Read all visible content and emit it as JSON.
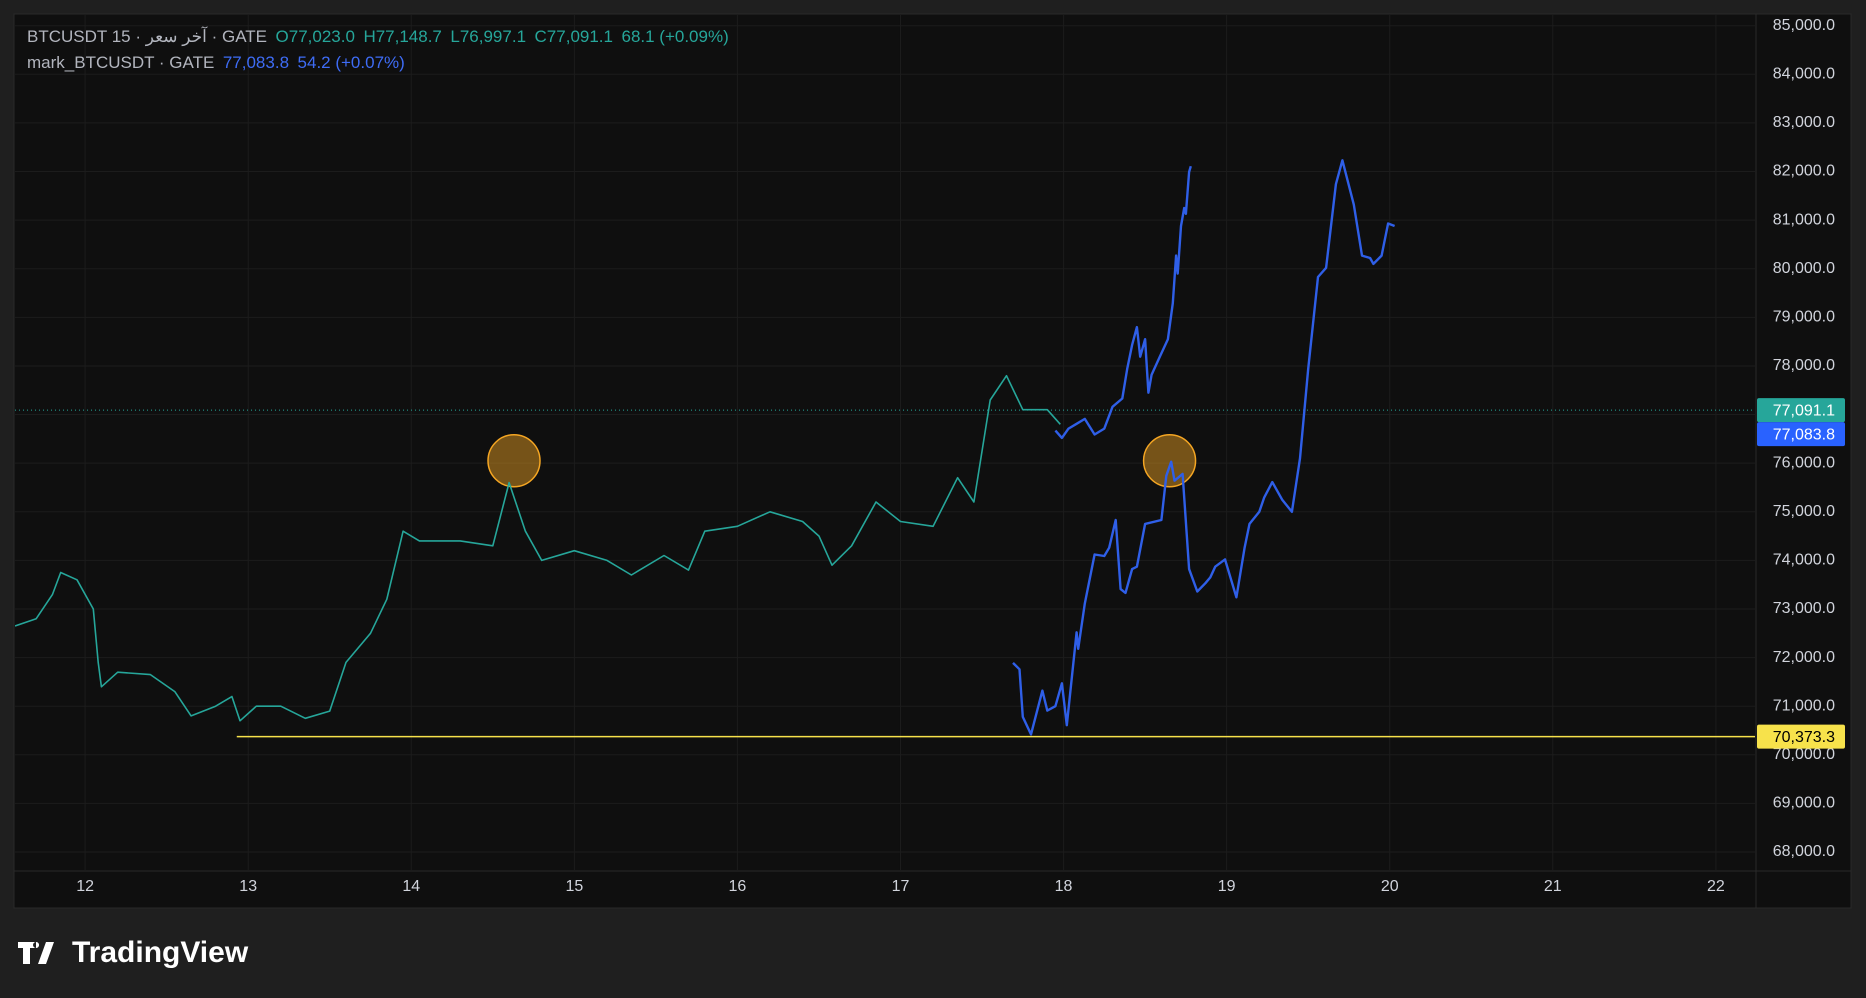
{
  "chart_data": {
    "type": "line",
    "series": [
      {
        "name": "BTCUSDT 15 · آخر سعر · GATE",
        "color": "#26a69a",
        "legend_values": [
          "O77,023.0",
          "H77,148.7",
          "L76,997.1",
          "C77,091.1",
          "68.1 (+0.09%)"
        ],
        "x": [
          11.57,
          11.7,
          11.8,
          11.85,
          11.95,
          12.05,
          12.08,
          12.1,
          12.2,
          12.4,
          12.55,
          12.65,
          12.8,
          12.9,
          12.95,
          13.05,
          13.2,
          13.35,
          13.5,
          13.6,
          13.75,
          13.85,
          13.95,
          14.05,
          14.3,
          14.5,
          14.6,
          14.7,
          14.8,
          15.0,
          15.2,
          15.35,
          15.55,
          15.7,
          15.8,
          16.0,
          16.2,
          16.4,
          16.5,
          16.58,
          16.7,
          16.85,
          17.0,
          17.2,
          17.35,
          17.45,
          17.55,
          17.65,
          17.75,
          17.9,
          17.98
        ],
        "values": [
          72650,
          72800,
          73300,
          73750,
          73600,
          73000,
          71900,
          71400,
          71700,
          71650,
          71300,
          70800,
          71000,
          71200,
          70700,
          71000,
          71000,
          70750,
          70900,
          71900,
          72500,
          73200,
          74600,
          74400,
          74400,
          74300,
          75600,
          74600,
          74000,
          74200,
          74000,
          73700,
          74100,
          73800,
          74600,
          74700,
          75000,
          74800,
          74500,
          73900,
          74300,
          75200,
          74800,
          74700,
          75700,
          75200,
          77300,
          77800,
          77100,
          77100,
          76800
        ]
      },
      {
        "name": "mark_BTCUSDT · GATE",
        "color": "#2f5fe8",
        "legend_values": [
          "77,083.8",
          "54.2 (+0.07%)"
        ],
        "x": [
          17.95,
          17.99,
          18.03,
          18.08,
          18.13,
          18.19,
          18.25,
          18.3,
          18.36,
          18.39,
          18.42,
          18.45,
          18.47,
          18.5,
          18.52,
          18.54,
          18.59,
          18.64,
          18.67,
          18.69,
          18.7,
          18.72,
          18.74,
          18.75,
          18.77,
          18.78
        ],
        "values": [
          76670,
          76520,
          76710,
          76810,
          76910,
          76590,
          76710,
          77160,
          77330,
          77940,
          78430,
          78800,
          78190,
          78550,
          77450,
          77820,
          78190,
          78550,
          79290,
          80270,
          79900,
          80880,
          81250,
          81130,
          81990,
          82110
        ]
      },
      {
        "color": "#2f5fe8",
        "x": [
          17.69,
          17.73,
          17.75,
          17.8,
          17.87,
          17.9,
          17.95,
          17.99,
          18.02,
          18.08,
          18.09,
          18.13,
          18.19,
          18.25,
          18.28,
          18.32,
          18.35,
          18.38,
          18.42,
          18.45,
          18.5,
          18.6,
          18.63,
          18.66,
          18.68,
          18.73,
          18.77,
          18.82,
          18.87,
          18.9,
          18.93,
          18.99,
          19.06,
          19.11,
          19.14,
          19.2,
          19.23,
          19.28,
          19.34,
          19.4,
          19.45,
          19.5,
          19.56,
          19.61,
          19.67,
          19.71,
          19.78,
          19.83,
          19.88,
          19.9,
          19.95,
          19.99,
          20.03
        ],
        "values": [
          71890,
          71760,
          70780,
          70420,
          71320,
          70910,
          71000,
          71470,
          70610,
          72520,
          72180,
          73110,
          74120,
          74090,
          74260,
          74830,
          73410,
          73330,
          73820,
          73870,
          74750,
          74830,
          75740,
          76030,
          75640,
          75780,
          73820,
          73360,
          73530,
          73650,
          73870,
          74020,
          73240,
          74260,
          74750,
          75000,
          75290,
          75610,
          75250,
          75000,
          76100,
          77940,
          79830,
          80020,
          81740,
          82230,
          81320,
          80270,
          80220,
          80100,
          80270,
          80930,
          80880
        ]
      }
    ],
    "price_tags": [
      {
        "value": 77091.1,
        "label": "77,091.1",
        "color": "#26a69a",
        "dotted_line": true
      },
      {
        "value": 77083.8,
        "label": "77,083.8",
        "color": "#2962ff"
      },
      {
        "value": 70373.3,
        "label": "70,373.3",
        "color": "#f7e24b",
        "line_start": 12.93
      }
    ],
    "annotations": [
      {
        "x": 14.63,
        "y": 76050,
        "color": "#f5a623"
      },
      {
        "x": 18.65,
        "y": 76050,
        "color": "#f5a623"
      }
    ],
    "xlim": [
      11.57,
      22.24
    ],
    "xticks": [
      12,
      13,
      14,
      15,
      16,
      17,
      18,
      19,
      20,
      21,
      22
    ],
    "ylim": [
      67630,
      85220
    ],
    "yticks": [
      {
        "value": 68000,
        "label": "68,000.0"
      },
      {
        "value": 69000,
        "label": "69,000.0"
      },
      {
        "value": 70000,
        "label": "70,000.0"
      },
      {
        "value": 71000,
        "label": "71,000.0"
      },
      {
        "value": 72000,
        "label": "72,000.0"
      },
      {
        "value": 73000,
        "label": "73,000.0"
      },
      {
        "value": 74000,
        "label": "74,000.0"
      },
      {
        "value": 75000,
        "label": "75,000.0"
      },
      {
        "value": 76000,
        "label": "76,000.0"
      },
      {
        "value": 77000,
        "label": "77,000.0"
      },
      {
        "value": 78000,
        "label": "78,000.0"
      },
      {
        "value": 79000,
        "label": "79,000.0"
      },
      {
        "value": 80000,
        "label": "80,000.0"
      },
      {
        "value": 81000,
        "label": "81,000.0"
      },
      {
        "value": 82000,
        "label": "82,000.0"
      },
      {
        "value": 83000,
        "label": "83,000.0"
      },
      {
        "value": 84000,
        "label": "84,000.0"
      },
      {
        "value": 85000,
        "label": "85,000.0"
      }
    ],
    "grid": true,
    "brand": "TradingView"
  }
}
